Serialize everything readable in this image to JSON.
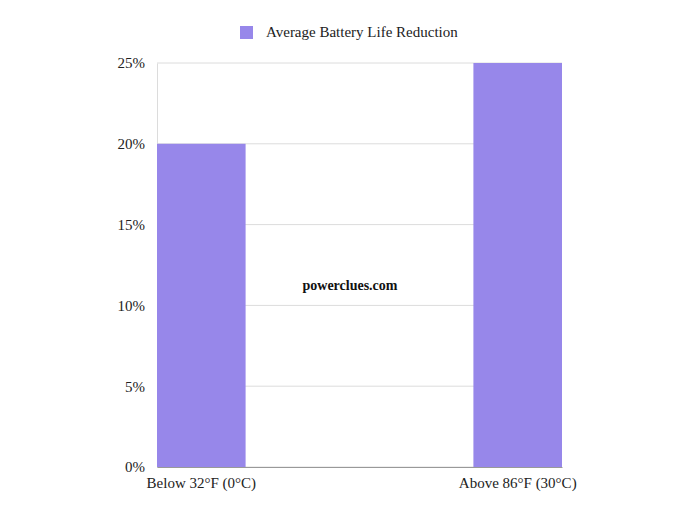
{
  "chart_data": {
    "type": "bar",
    "categories": [
      "Below 32°F (0°C)",
      "Above 86°F (30°C)"
    ],
    "series": [
      {
        "name": "Average Battery Life Reduction",
        "color": "#9787ea",
        "values": [
          20,
          25
        ]
      }
    ],
    "ylim": [
      0,
      25
    ],
    "yticks": [
      {
        "value": 0,
        "label": "0%"
      },
      {
        "value": 5,
        "label": "5%"
      },
      {
        "value": 10,
        "label": "10%"
      },
      {
        "value": 15,
        "label": "15%"
      },
      {
        "value": 20,
        "label": "20%"
      },
      {
        "value": 25,
        "label": "25%"
      }
    ],
    "grid": true,
    "legend": "top",
    "annotations": [
      "powerclues.com"
    ]
  }
}
